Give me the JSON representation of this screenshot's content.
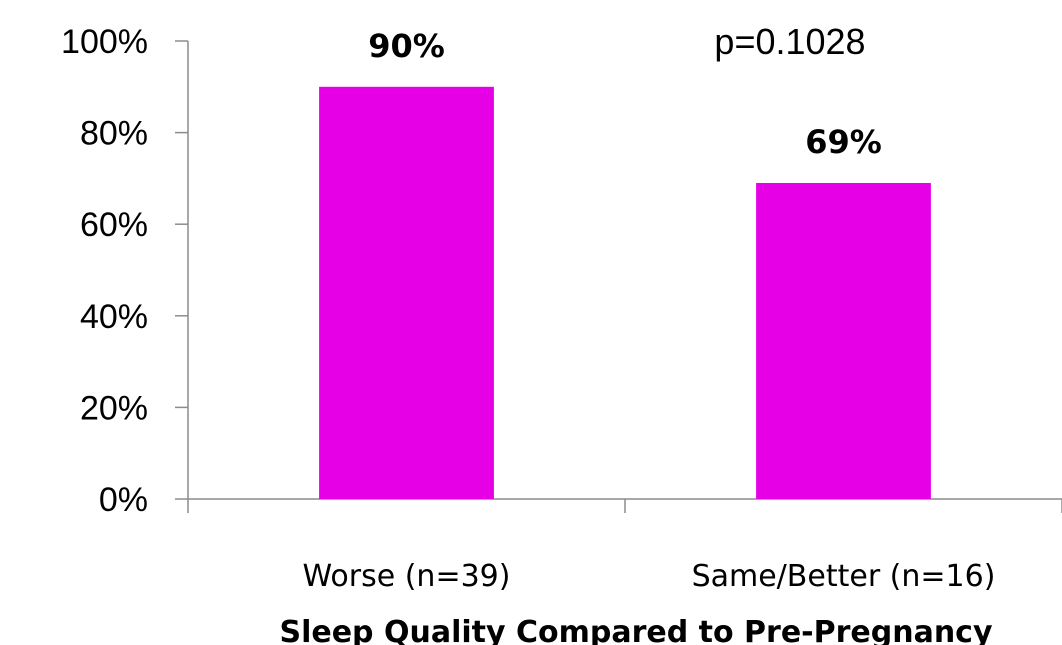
{
  "chart_data": {
    "type": "bar",
    "categories": [
      "Worse (n=39)",
      "Same/Better (n=16)"
    ],
    "values": [
      90,
      69
    ],
    "data_labels": [
      "90%",
      "69%"
    ],
    "ylim": [
      0,
      100
    ],
    "y_ticks": [
      {
        "value": 0,
        "label": "0%"
      },
      {
        "value": 20,
        "label": "20%"
      },
      {
        "value": 40,
        "label": "40%"
      },
      {
        "value": 60,
        "label": "60%"
      },
      {
        "value": 80,
        "label": "80%"
      },
      {
        "value": 100,
        "label": "100%"
      }
    ],
    "xlabel": "Sleep Quality Compared to Pre-Pregnancy",
    "ylabel": "",
    "annotation": "p=0.1028",
    "bar_color": "#e600e6",
    "grid": false,
    "legend": "none"
  }
}
